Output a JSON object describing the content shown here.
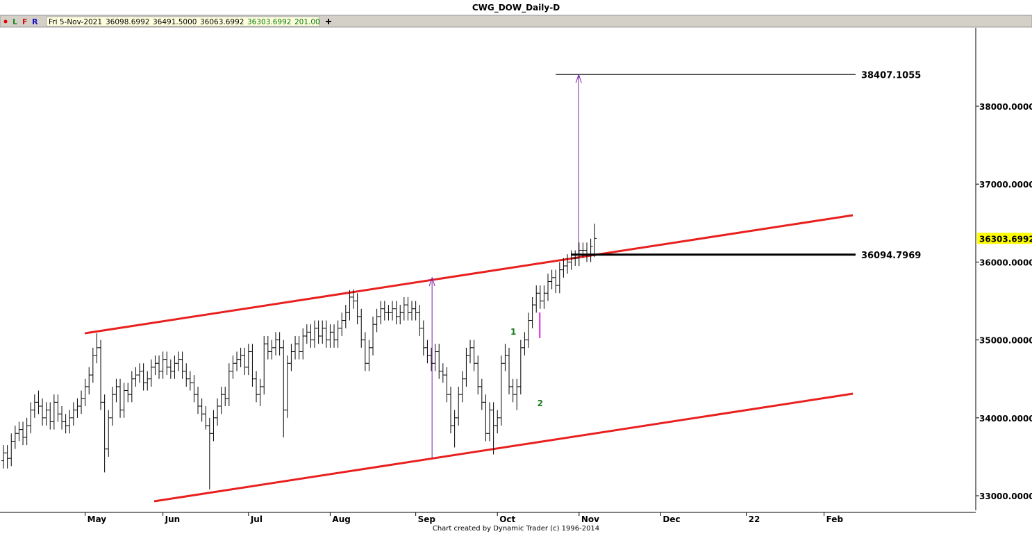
{
  "chart_data": {
    "type": "ohlc",
    "title": "CWG_DOW_Daily-D",
    "toolbar": {
      "buttons": [
        "L",
        "F",
        "R"
      ],
      "info": [
        "Fri 5-Nov-2021",
        "36098.6992",
        "36491.5000",
        "36063.6992",
        "36303.6992",
        "201.00"
      ]
    },
    "footer": "Chart created by Dynamic Trader  (c) 1996-2014",
    "color": "#000000",
    "open": [
      33450,
      33550,
      33480,
      33700,
      33800,
      33850,
      33750,
      33900,
      34100,
      34200,
      34150,
      34000,
      34100,
      33950,
      34200,
      34050,
      33950,
      33900,
      34000,
      34100,
      34150,
      34250,
      34400,
      34550,
      34800,
      34900,
      34200,
      33600,
      34000,
      34300,
      34400,
      34100,
      34350,
      34300,
      34500,
      34550,
      34600,
      34450,
      34500,
      34650,
      34700,
      34600,
      34750,
      34650,
      34600,
      34700,
      34750,
      34600,
      34500,
      34450,
      34300,
      34150,
      34050,
      33900,
      33800,
      34000,
      34150,
      34300,
      34250,
      34600,
      34700,
      34750,
      34800,
      34650,
      34850,
      34500,
      34300,
      34400,
      34950,
      34850,
      34900,
      35000,
      34900,
      34100,
      34700,
      34850,
      34950,
      34850,
      35050,
      35100,
      35000,
      35150,
      35050,
      35150,
      35000,
      35100,
      35000,
      35150,
      35250,
      35350,
      35550,
      35500,
      35300,
      35000,
      34700,
      34900,
      35200,
      35300,
      35400,
      35350,
      35350,
      35400,
      35300,
      35350,
      35450,
      35350,
      35400,
      35350,
      35150,
      34900,
      34800,
      34700,
      34850,
      34600,
      34550,
      34300,
      33900,
      34000,
      34300,
      34500,
      34800,
      34900,
      34700,
      34400,
      34200,
      33800,
      34100,
      33900,
      34000,
      34700,
      34800,
      34400,
      34300,
      34400,
      34900,
      35000,
      35250,
      35450,
      35600,
      35500,
      35600,
      35750,
      35800,
      35700,
      35900,
      35950,
      36000,
      36050,
      36050,
      36150,
      36150,
      36100,
      36098.6992
    ],
    "high": [
      33650,
      33650,
      33800,
      33900,
      33950,
      33950,
      34000,
      34200,
      34300,
      34350,
      34250,
      34200,
      34200,
      34300,
      34300,
      34150,
      34050,
      34100,
      34200,
      34250,
      34350,
      34500,
      34650,
      34900,
      35085,
      35000,
      34300,
      34100,
      34400,
      34500,
      34500,
      34450,
      34450,
      34600,
      34650,
      34700,
      34700,
      34600,
      34750,
      34800,
      34800,
      34850,
      34850,
      34750,
      34800,
      34850,
      34850,
      34700,
      34600,
      34550,
      34400,
      34250,
      34150,
      34000,
      34100,
      34250,
      34400,
      34400,
      34700,
      34800,
      34850,
      34900,
      34900,
      34950,
      34950,
      34600,
      34500,
      35050,
      35050,
      35000,
      35100,
      35100,
      35000,
      34800,
      34950,
      35050,
      35050,
      35150,
      35200,
      35200,
      35250,
      35250,
      35250,
      35250,
      35200,
      35200,
      35250,
      35350,
      35450,
      35640,
      35650,
      35600,
      35400,
      35100,
      35000,
      35300,
      35400,
      35500,
      35500,
      35450,
      35500,
      35500,
      35450,
      35550,
      35550,
      35500,
      35500,
      35450,
      35250,
      35000,
      34900,
      34950,
      34950,
      34700,
      34650,
      34400,
      34100,
      34400,
      34600,
      34900,
      35000,
      35000,
      34800,
      34500,
      34300,
      34200,
      34200,
      34100,
      34800,
      34950,
      34900,
      34500,
      34500,
      35000,
      35100,
      35350,
      35550,
      35700,
      35700,
      35700,
      35850,
      35900,
      35900,
      36000,
      36050,
      36100,
      36150,
      36150,
      36250,
      36250,
      36250,
      36300,
      36491.5
    ],
    "low": [
      33350,
      33350,
      33380,
      33600,
      33700,
      33650,
      33650,
      33800,
      34000,
      34050,
      33900,
      33900,
      33850,
      33850,
      33950,
      33850,
      33800,
      33800,
      33900,
      34000,
      34050,
      34150,
      34300,
      34450,
      34700,
      34100,
      33300,
      33500,
      33900,
      34200,
      34000,
      34000,
      34200,
      34200,
      34400,
      34450,
      34350,
      34350,
      34400,
      34550,
      34500,
      34500,
      34550,
      34500,
      34500,
      34600,
      34500,
      34400,
      34350,
      34200,
      34050,
      33950,
      33850,
      33080,
      33700,
      33900,
      34050,
      34150,
      34150,
      34500,
      34600,
      34650,
      34550,
      34550,
      34400,
      34200,
      34150,
      34300,
      34750,
      34750,
      34800,
      34800,
      33750,
      34000,
      34600,
      34750,
      34750,
      34750,
      34950,
      34900,
      34900,
      34950,
      34950,
      34900,
      34900,
      34900,
      34900,
      35050,
      35150,
      35250,
      35400,
      35200,
      34900,
      34600,
      34600,
      34800,
      35100,
      35200,
      35250,
      35250,
      35250,
      35200,
      35200,
      35250,
      35250,
      35250,
      35250,
      35050,
      34800,
      34700,
      34600,
      34600,
      34500,
      34450,
      34200,
      33800,
      33620,
      33900,
      34200,
      34400,
      34700,
      34600,
      34300,
      34100,
      33700,
      33700,
      33530,
      33800,
      33900,
      34600,
      34300,
      34200,
      34100,
      34300,
      34800,
      34900,
      35150,
      35350,
      35400,
      35400,
      35500,
      35650,
      35600,
      35600,
      35800,
      35850,
      35900,
      35950,
      35950,
      36050,
      36000,
      36000,
      36063.6992
    ],
    "close": [
      33550,
      33480,
      33700,
      33800,
      33850,
      33750,
      33900,
      34100,
      34200,
      34150,
      34000,
      34100,
      33950,
      34200,
      34050,
      33950,
      33900,
      34000,
      34100,
      34150,
      34250,
      34400,
      34550,
      34800,
      34900,
      34200,
      33600,
      34000,
      34300,
      34400,
      34100,
      34350,
      34300,
      34500,
      34550,
      34600,
      34450,
      34500,
      34650,
      34700,
      34600,
      34750,
      34650,
      34600,
      34700,
      34750,
      34600,
      34500,
      34450,
      34300,
      34150,
      34050,
      33900,
      33800,
      34000,
      34150,
      34300,
      34250,
      34600,
      34700,
      34750,
      34800,
      34650,
      34850,
      34500,
      34300,
      34400,
      34950,
      34850,
      34900,
      35000,
      34900,
      34100,
      34700,
      34850,
      34950,
      34850,
      35050,
      35100,
      35000,
      35150,
      35050,
      35150,
      35000,
      35100,
      35000,
      35150,
      35250,
      35350,
      35550,
      35500,
      35300,
      35000,
      34700,
      34900,
      35200,
      35300,
      35400,
      35350,
      35350,
      35400,
      35300,
      35350,
      35450,
      35350,
      35400,
      35350,
      35150,
      34900,
      34800,
      34700,
      34850,
      34600,
      34550,
      34300,
      33900,
      34000,
      34300,
      34500,
      34800,
      34900,
      34700,
      34400,
      34200,
      33800,
      34100,
      33900,
      34000,
      34700,
      34800,
      34400,
      34300,
      34400,
      34900,
      35000,
      35250,
      35450,
      35600,
      35500,
      35600,
      35750,
      35800,
      35700,
      35900,
      35950,
      36000,
      36050,
      36050,
      36150,
      36150,
      36100,
      36200,
      36303.6992
    ],
    "xlim": [
      -0.9,
      250
    ],
    "xticks": [
      {
        "value": 21,
        "label": "May"
      },
      {
        "value": 41,
        "label": "Jun"
      },
      {
        "value": 63,
        "label": "Jul"
      },
      {
        "value": 84,
        "label": "Aug"
      },
      {
        "value": 106,
        "label": "Sep"
      },
      {
        "value": 127,
        "label": "Oct"
      },
      {
        "value": 148,
        "label": "Nov"
      },
      {
        "value": 169,
        "label": "Dec"
      },
      {
        "value": 191,
        "label": "22"
      },
      {
        "value": 211,
        "label": "Feb"
      }
    ],
    "ylim": [
      32813,
      39007
    ],
    "yticks": [
      {
        "value": 33000,
        "label": "33000.0000"
      },
      {
        "value": 34000,
        "label": "34000.0000"
      },
      {
        "value": 35000,
        "label": "35000.0000"
      },
      {
        "value": 36000,
        "label": "36000.0000"
      },
      {
        "value": 37000,
        "label": "37000.0000"
      },
      {
        "value": 38000,
        "label": "38000.0000"
      }
    ],
    "grid": false,
    "trendlines": [
      {
        "color": "#e8201e",
        "x": [
          20.9,
          218.4
        ],
        "y": [
          35085,
          36601
        ]
      },
      {
        "color": "#e8201e",
        "x": [
          38.75,
          218.4
        ],
        "y": [
          32929,
          34310
        ]
      }
    ],
    "levels": [
      {
        "value": 38407.1055,
        "x": [
          142,
          219.1
        ],
        "width": 1
      },
      {
        "value": 36094.7969,
        "x": [
          145.9,
          219.1
        ],
        "width": 3
      }
    ],
    "arrows": [
      {
        "color": "#7a1fa2",
        "x": 110.2,
        "y": [
          33481,
          35799
        ]
      },
      {
        "color": "#7a1fa2",
        "x": 147.9,
        "y": [
          36094.7969,
          38407.1055
        ]
      }
    ],
    "segments": [
      {
        "color": "#e020e0",
        "x": 137.9,
        "y": [
          35023,
          35353
        ]
      }
    ],
    "wave_labels": [
      {
        "label": "1",
        "x": 131.1,
        "y": 35103,
        "color": "#1a7a1a"
      },
      {
        "label": "2",
        "x": 138,
        "y": 34185,
        "color": "#1a7a1a"
      }
    ]
  }
}
